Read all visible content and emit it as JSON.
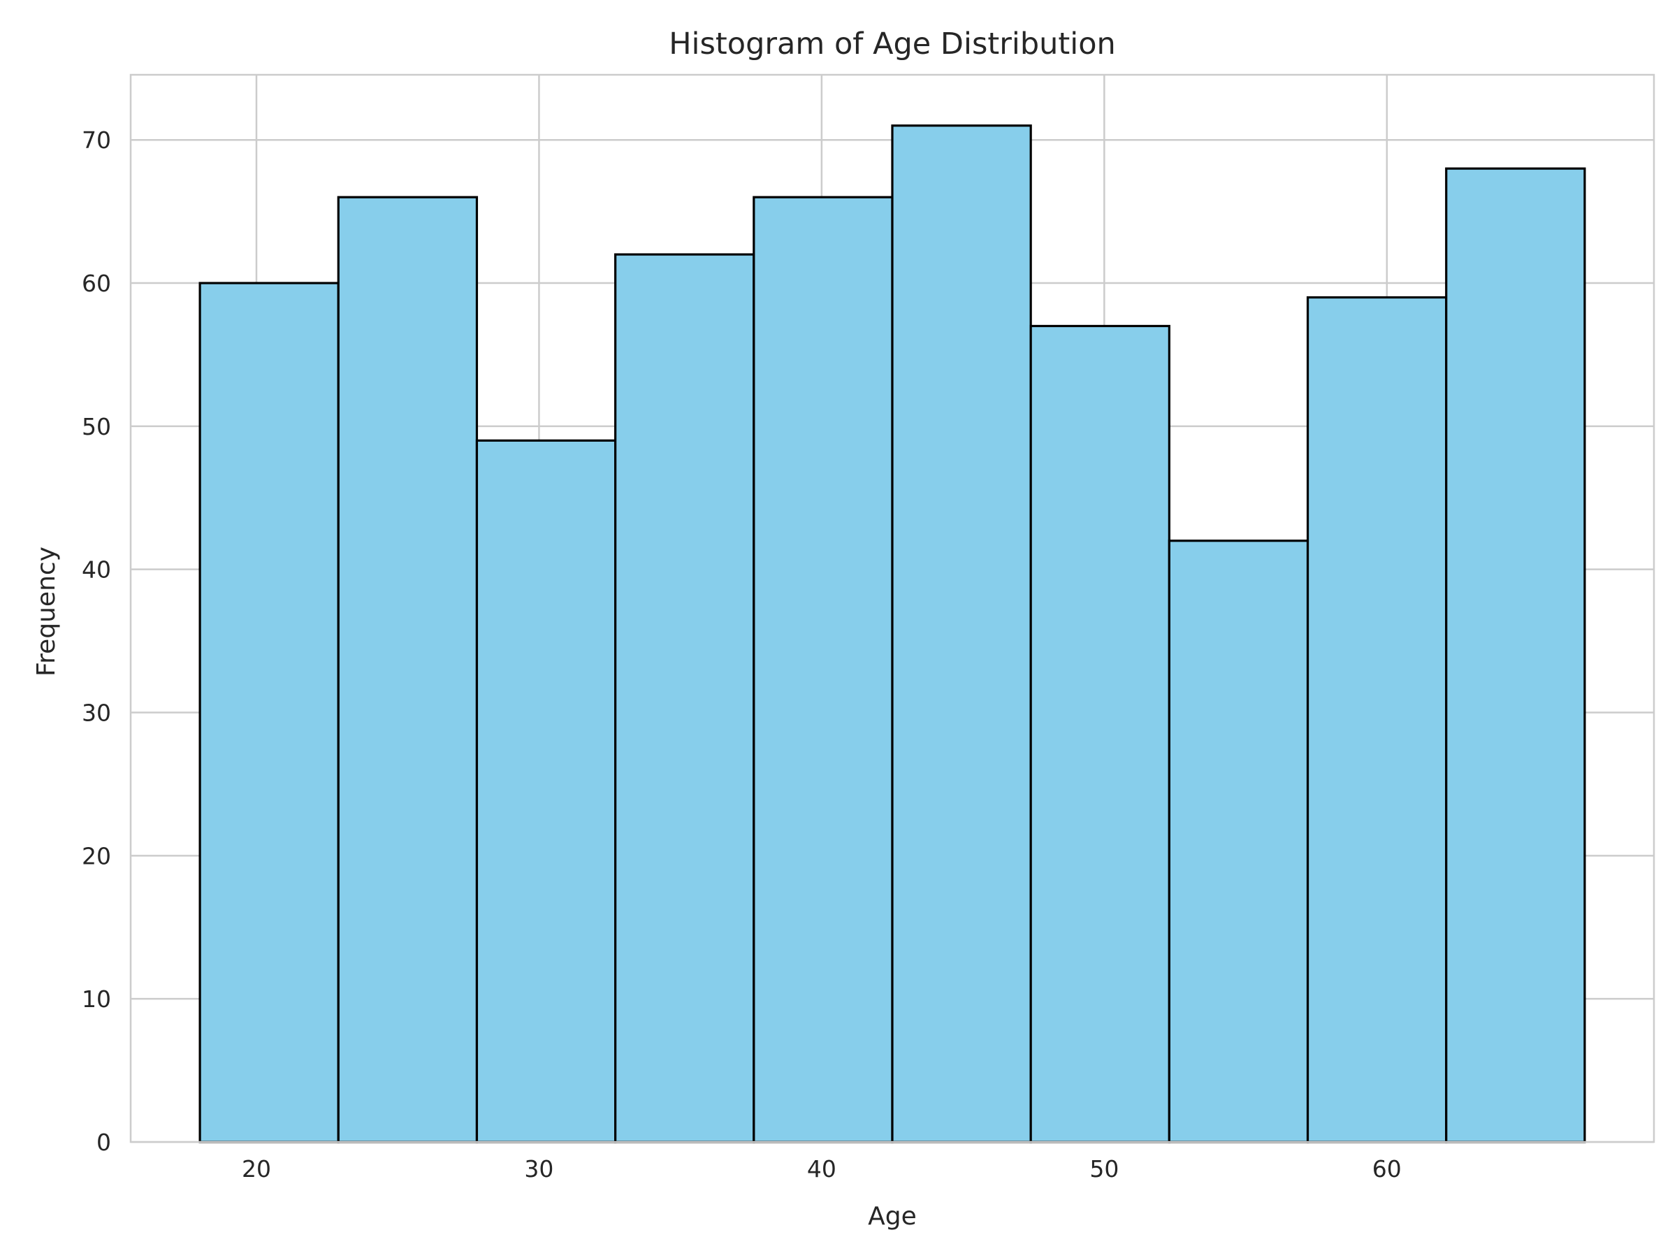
{
  "chart_data": {
    "type": "histogram",
    "title": "Histogram of Age Distribution",
    "xlabel": "Age",
    "ylabel": "Frequency",
    "bin_edges": [
      18,
      22.9,
      27.8,
      32.7,
      37.6,
      42.5,
      47.4,
      52.3,
      57.2,
      62.1,
      67
    ],
    "values": [
      60,
      66,
      49,
      62,
      66,
      71,
      57,
      42,
      59,
      68
    ],
    "xlim": [
      15.55,
      69.45
    ],
    "ylim": [
      0,
      74.55
    ],
    "xticks": [
      20,
      30,
      40,
      50,
      60
    ],
    "yticks": [
      0,
      10,
      20,
      30,
      40,
      50,
      60,
      70
    ],
    "grid": true,
    "colors": {
      "bar_fill": "#87CEEB",
      "bar_edge": "#000000",
      "grid": "#cccccc",
      "text": "#262626"
    }
  }
}
